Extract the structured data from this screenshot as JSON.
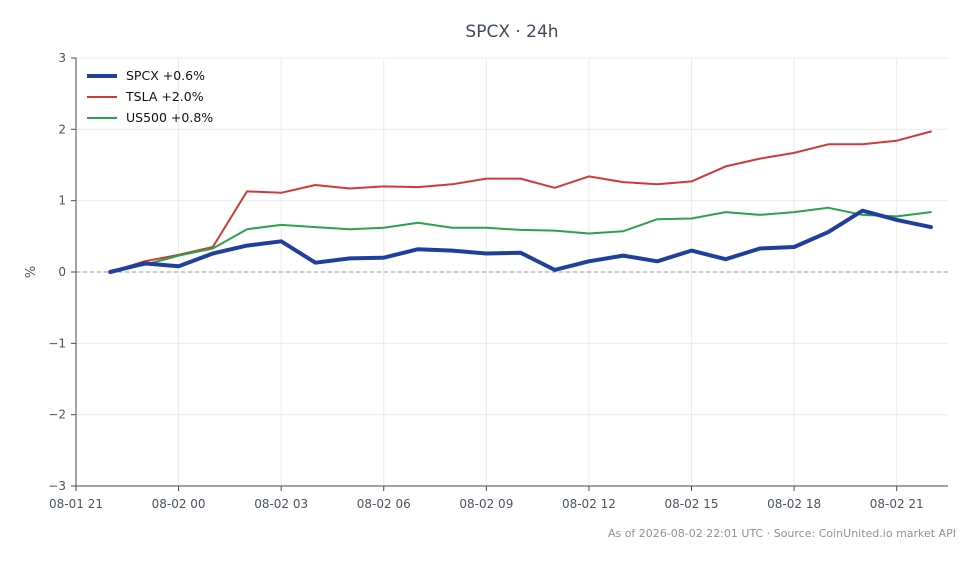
{
  "chart_data": {
    "type": "line",
    "title": "SPCX · 24h",
    "xlabel": "",
    "ylabel": "%",
    "ylim": [
      -3,
      3
    ],
    "yticks": [
      3,
      2,
      1,
      0,
      -1,
      -2,
      -3
    ],
    "ytick_labels": [
      "3",
      "2",
      "1",
      "0",
      "−1",
      "−2",
      "−3"
    ],
    "xlim": [
      "2026-08-01 21:00",
      "2026-08-02 22:30"
    ],
    "xticks": [
      "2026-08-01 21:00",
      "2026-08-02 00:00",
      "2026-08-02 03:00",
      "2026-08-02 06:00",
      "2026-08-02 09:00",
      "2026-08-02 12:00",
      "2026-08-02 15:00",
      "2026-08-02 18:00",
      "2026-08-02 21:00"
    ],
    "xtick_labels": [
      "08-01 21",
      "08-02 00",
      "08-02 03",
      "08-02 06",
      "08-02 09",
      "08-02 12",
      "08-02 15",
      "08-02 18",
      "08-02 21"
    ],
    "x": [
      "2026-08-01 22:00",
      "2026-08-01 23:00",
      "2026-08-02 00:00",
      "2026-08-02 01:00",
      "2026-08-02 02:00",
      "2026-08-02 03:00",
      "2026-08-02 04:00",
      "2026-08-02 05:00",
      "2026-08-02 06:00",
      "2026-08-02 07:00",
      "2026-08-02 08:00",
      "2026-08-02 09:00",
      "2026-08-02 10:00",
      "2026-08-02 11:00",
      "2026-08-02 12:00",
      "2026-08-02 13:00",
      "2026-08-02 14:00",
      "2026-08-02 15:00",
      "2026-08-02 16:00",
      "2026-08-02 17:00",
      "2026-08-02 18:00",
      "2026-08-02 19:00",
      "2026-08-02 20:00",
      "2026-08-02 21:00",
      "2026-08-02 22:00"
    ],
    "series": [
      {
        "name": "SPCX +0.6%",
        "color": "#1f3f9e",
        "width": 4,
        "values": [
          0.0,
          0.12,
          0.08,
          0.26,
          0.37,
          0.43,
          0.13,
          0.19,
          0.2,
          0.32,
          0.3,
          0.26,
          0.27,
          0.03,
          0.15,
          0.23,
          0.15,
          0.3,
          0.18,
          0.33,
          0.35,
          0.56,
          0.86,
          0.73,
          0.63
        ]
      },
      {
        "name": "TSLA +2.0%",
        "color": "#d03a36",
        "width": 2,
        "values": [
          0.0,
          0.15,
          0.24,
          0.35,
          1.13,
          1.11,
          1.22,
          1.17,
          1.2,
          1.19,
          1.23,
          1.31,
          1.31,
          1.18,
          1.34,
          1.26,
          1.23,
          1.27,
          1.48,
          1.59,
          1.67,
          1.79,
          1.79,
          1.84,
          1.97
        ]
      },
      {
        "name": "US500 +0.8%",
        "color": "#2ba24c",
        "width": 2,
        "values": [
          0.0,
          0.1,
          0.23,
          0.33,
          0.6,
          0.66,
          0.63,
          0.6,
          0.62,
          0.69,
          0.62,
          0.62,
          0.59,
          0.58,
          0.54,
          0.57,
          0.74,
          0.75,
          0.84,
          0.8,
          0.84,
          0.9,
          0.8,
          0.78,
          0.84
        ]
      }
    ],
    "zero_line": true,
    "grid": true,
    "legend_position": "top-left"
  },
  "footer": "As of 2026-08-02 22:01 UTC · Source: CoinUnited.io market API"
}
